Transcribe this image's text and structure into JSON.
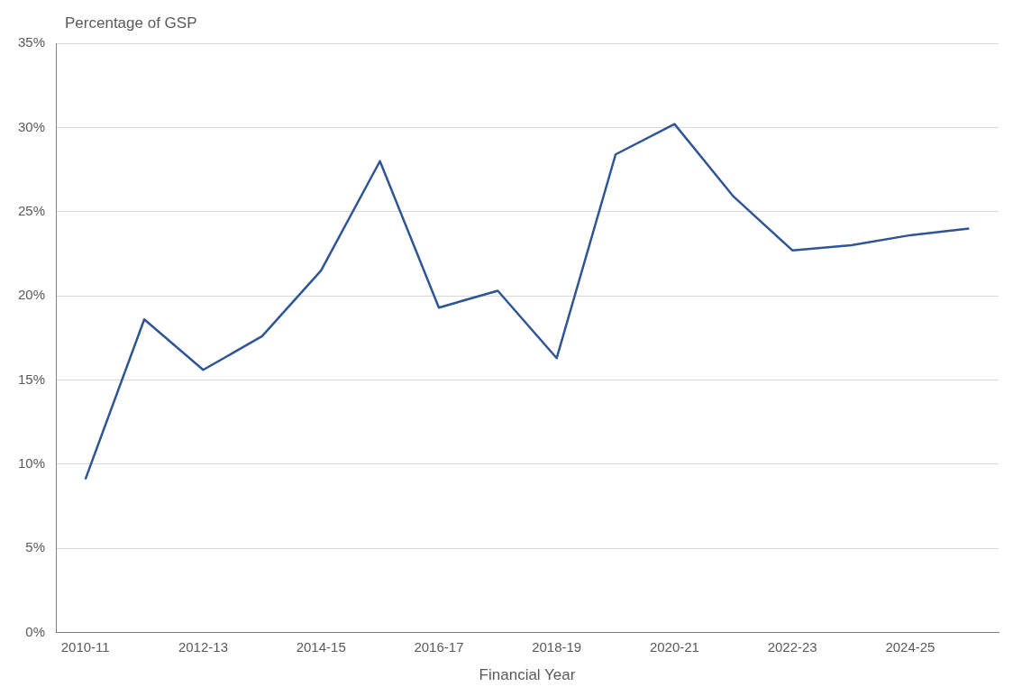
{
  "chart_data": {
    "type": "line",
    "ylabel": "Percentage of GSP",
    "xlabel": "Financial Year",
    "categories": [
      "2010-11",
      null,
      "2012-13",
      null,
      "2014-15",
      null,
      "2016-17",
      null,
      "2018-19",
      null,
      "2020-21",
      null,
      "2022-23",
      null,
      "2024-25",
      null
    ],
    "series": [
      {
        "color": "#2f5597",
        "values": [
          9.1,
          18.6,
          15.6,
          17.6,
          21.5,
          28.0,
          19.3,
          20.3,
          16.3,
          28.4,
          30.2,
          25.9,
          22.7,
          23.0,
          23.6,
          24.0
        ]
      }
    ],
    "ylim": [
      0,
      35
    ],
    "yticks": [
      {
        "value": 0,
        "label": "0%"
      },
      {
        "value": 5,
        "label": "5%"
      },
      {
        "value": 10,
        "label": "10%"
      },
      {
        "value": 15,
        "label": "15%"
      },
      {
        "value": 20,
        "label": "20%"
      },
      {
        "value": 25,
        "label": "25%"
      },
      {
        "value": 30,
        "label": "30%"
      },
      {
        "value": 35,
        "label": "35%"
      }
    ],
    "grid": "y",
    "legend": false,
    "marker": "none",
    "line_style": "solid"
  }
}
